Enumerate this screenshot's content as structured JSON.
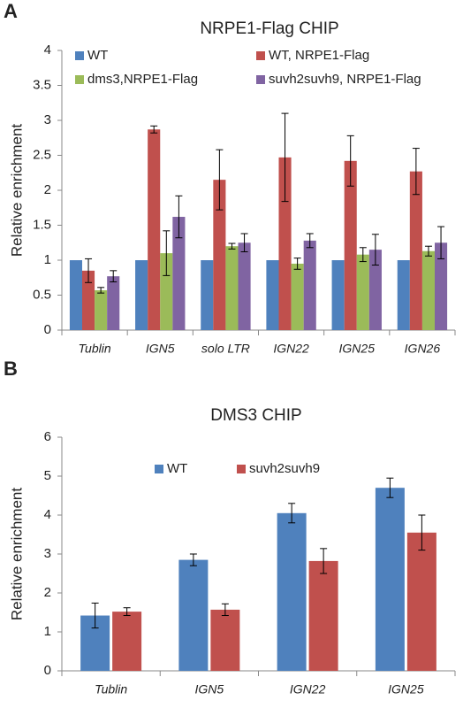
{
  "chart_data": [
    {
      "type": "bar",
      "panel": "A",
      "title": "NRPE1-Flag CHIP",
      "y_label": "Relative enrichment",
      "categories": [
        "Tublin",
        "IGN5",
        "solo LTR",
        "IGN22",
        "IGN25",
        "IGN26"
      ],
      "ylim": [
        0,
        4
      ],
      "yticks": [
        0,
        0.5,
        1,
        1.5,
        2,
        2.5,
        3,
        3.5,
        4
      ],
      "series": [
        {
          "name": "WT",
          "color": "#4f81bd",
          "values": [
            1,
            1,
            1,
            1,
            1,
            1
          ]
        },
        {
          "name": "WT, NRPE1-Flag",
          "color": "#c0504d",
          "values": [
            0.85,
            2.87,
            2.15,
            2.47,
            2.42,
            2.27
          ],
          "errors": [
            0.17,
            0.05,
            0.43,
            0.63,
            0.36,
            0.33
          ]
        },
        {
          "name": "dms3,NRPE1-Flag",
          "color": "#9bbb59",
          "values": [
            0.57,
            1.1,
            1.2,
            0.95,
            1.08,
            1.13
          ],
          "errors": [
            0.04,
            0.32,
            0.04,
            0.08,
            0.1,
            0.07
          ]
        },
        {
          "name": "suvh2suvh9, NRPE1-Flag",
          "color": "#8064a2",
          "values": [
            0.77,
            1.62,
            1.25,
            1.28,
            1.15,
            1.25
          ],
          "errors": [
            0.08,
            0.3,
            0.13,
            0.1,
            0.22,
            0.23
          ]
        }
      ]
    },
    {
      "type": "bar",
      "panel": "B",
      "title": "DMS3 CHIP",
      "y_label": "Relative enrichment",
      "categories": [
        "Tublin",
        "IGN5",
        "IGN22",
        "IGN25"
      ],
      "ylim": [
        0,
        6
      ],
      "yticks": [
        0,
        1,
        2,
        3,
        4,
        5,
        6
      ],
      "series": [
        {
          "name": "WT",
          "color": "#4f81bd",
          "values": [
            1.42,
            2.85,
            4.05,
            4.7
          ],
          "errors": [
            0.32,
            0.15,
            0.25,
            0.25
          ]
        },
        {
          "name": "suvh2suvh9",
          "color": "#c0504d",
          "values": [
            1.52,
            1.57,
            2.82,
            3.55
          ],
          "errors": [
            0.1,
            0.15,
            0.32,
            0.45
          ]
        }
      ]
    }
  ]
}
